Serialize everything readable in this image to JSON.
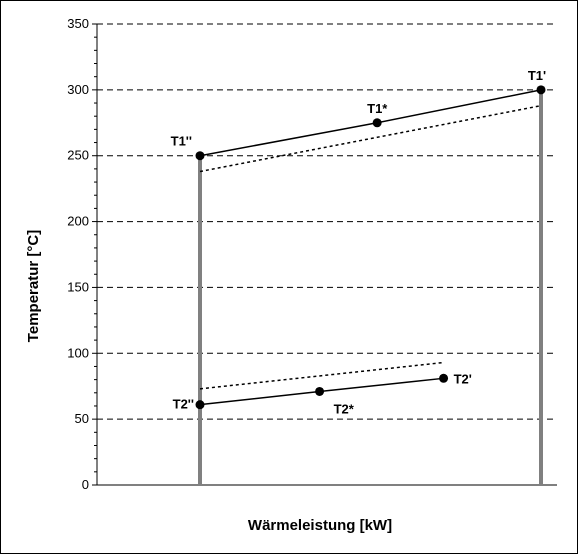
{
  "chart_data": {
    "type": "line",
    "xlabel": "Wärmeleistung [kW]",
    "ylabel": "Temperatur [°C]",
    "ylim": [
      0,
      350
    ],
    "yticks": [
      0,
      50,
      100,
      150,
      200,
      250,
      300,
      350
    ],
    "ytick_labels": [
      "0",
      "50",
      "100",
      "150",
      "200",
      "250",
      "300",
      "350"
    ],
    "xlim": [
      0,
      100
    ],
    "grid": "horizontal dashed",
    "vertical_bars": [
      {
        "x": 23,
        "y_from": 0,
        "y_to": 250,
        "color": "#808080"
      },
      {
        "x": 100,
        "y_from": 0,
        "y_to": 300,
        "color": "#808080"
      }
    ],
    "series": [
      {
        "style": "solid",
        "points": [
          {
            "x": 23,
            "y": 250,
            "label": "T1''"
          },
          {
            "x": 63,
            "y": 275,
            "label": "T1*"
          },
          {
            "x": 100,
            "y": 300,
            "label": "T1'"
          }
        ]
      },
      {
        "style": "dotted",
        "points": [
          {
            "x": 23,
            "y": 238
          },
          {
            "x": 100,
            "y": 288
          }
        ]
      },
      {
        "style": "solid",
        "points": [
          {
            "x": 23,
            "y": 61,
            "label": "T2''"
          },
          {
            "x": 50,
            "y": 71,
            "label": "T2*"
          },
          {
            "x": 78,
            "y": 81,
            "label": "T2'"
          }
        ]
      },
      {
        "style": "dotted",
        "points": [
          {
            "x": 23,
            "y": 73
          },
          {
            "x": 78,
            "y": 93
          }
        ]
      }
    ]
  }
}
